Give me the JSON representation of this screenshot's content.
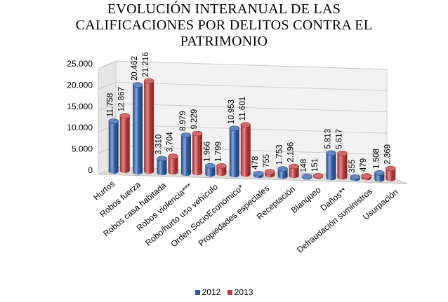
{
  "chart_data": {
    "type": "bar",
    "title_lines": [
      "EVOLUCIÓN INTERANUAL DE LAS",
      "CALIFICACIONES POR DELITOS CONTRA EL",
      "PATRIMONIO"
    ],
    "categories": [
      "Hurtos",
      "Robos fuerza",
      "Robos casa habitada",
      "Robos violencia***",
      "Robo/hurto uso vehículo",
      "Orden SocioEconómico*",
      "Propiedades especiales",
      "Receptación",
      "Blanqueo",
      "Daños**",
      "Defraudación suministros",
      "Usurpación"
    ],
    "series": [
      {
        "name": "2012",
        "color": "#2e5da8",
        "values": [
          11758,
          20462,
          3310,
          8979,
          1966,
          10953,
          478,
          1753,
          148,
          5813,
          355,
          1508
        ],
        "labels": [
          "11.758",
          "20.462",
          "3.310",
          "8.979",
          "1.966",
          "10.953",
          "478",
          "1.753",
          "148",
          "5.813",
          "355",
          "1.508"
        ]
      },
      {
        "name": "2013",
        "color": "#c0393b",
        "values": [
          12867,
          21216,
          3704,
          9229,
          1799,
          11601,
          755,
          2196,
          151,
          5617,
          479,
          2369
        ],
        "labels": [
          "12.867",
          "21.216",
          "3.704",
          "9.229",
          "1.799",
          "11.601",
          "755",
          "2.196",
          "151",
          "5.617",
          "479",
          "2.369"
        ]
      }
    ],
    "yticks": [
      "0",
      "5.000",
      "10.000",
      "15.000",
      "20.000",
      "25.000"
    ],
    "ylim": [
      0,
      25000
    ],
    "grid": true,
    "legend_position": "bottom"
  }
}
